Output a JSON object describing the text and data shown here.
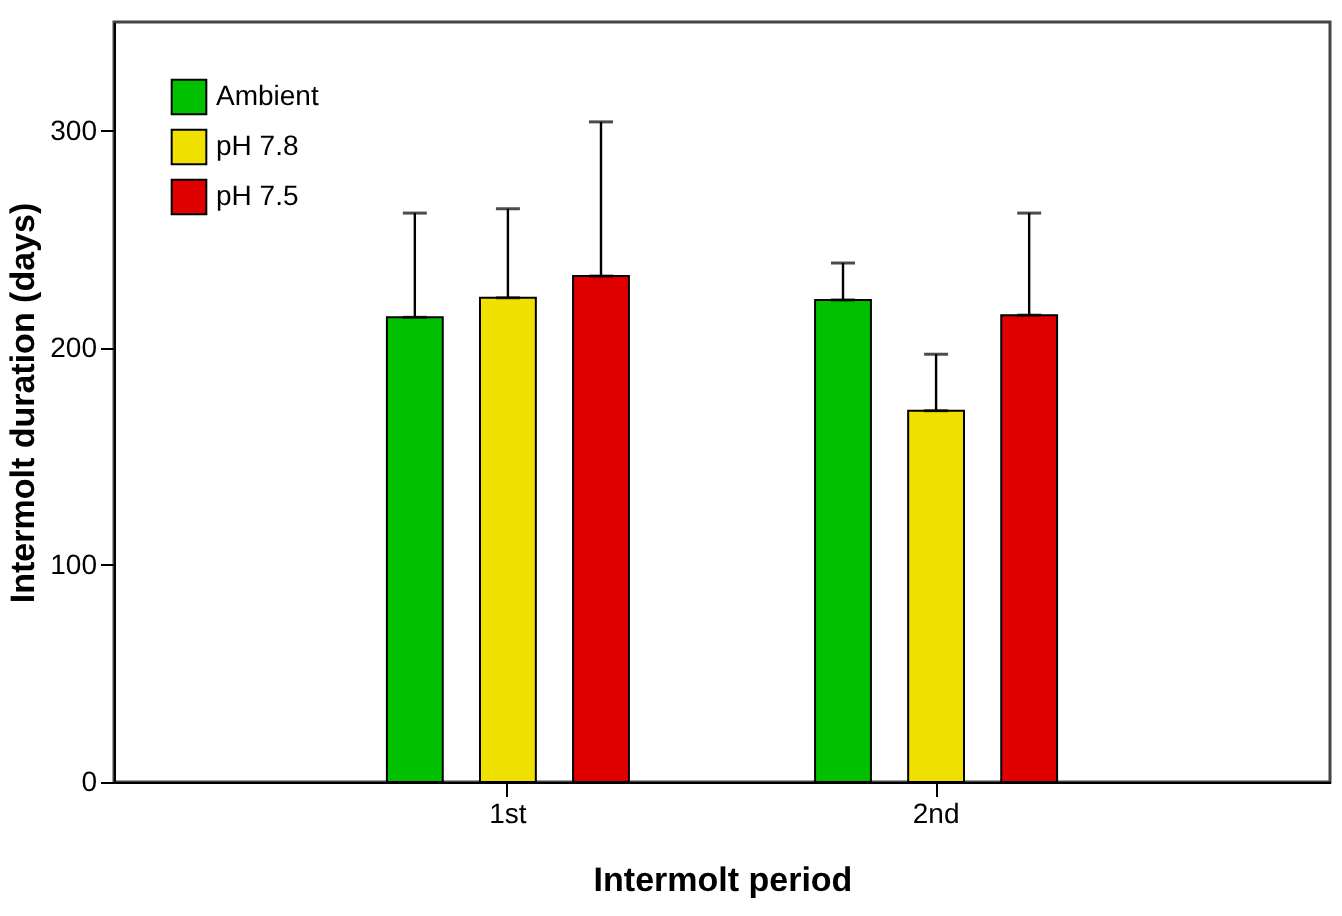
{
  "chart_data": {
    "type": "bar",
    "xlabel": "Intermolt period",
    "ylabel": "Intermolt duration (days)",
    "categories": [
      "1st",
      "2nd"
    ],
    "series": [
      {
        "name": "Ambient",
        "color": "#00c000",
        "values": [
          214,
          222
        ],
        "errors": [
          [
            214,
            262
          ],
          [
            222,
            239
          ]
        ]
      },
      {
        "name": "pH 7.8",
        "color": "#f0e000",
        "values": [
          223,
          171
        ],
        "errors": [
          [
            223,
            264
          ],
          [
            171,
            197
          ]
        ]
      },
      {
        "name": "pH 7.5",
        "color": "#e00000",
        "values": [
          233,
          215
        ],
        "errors": [
          [
            233,
            304
          ],
          [
            215,
            262
          ]
        ]
      }
    ],
    "ylim": [
      0,
      350
    ],
    "yticks": [
      0,
      100,
      200,
      300
    ],
    "grid": false,
    "legend": "top left"
  }
}
